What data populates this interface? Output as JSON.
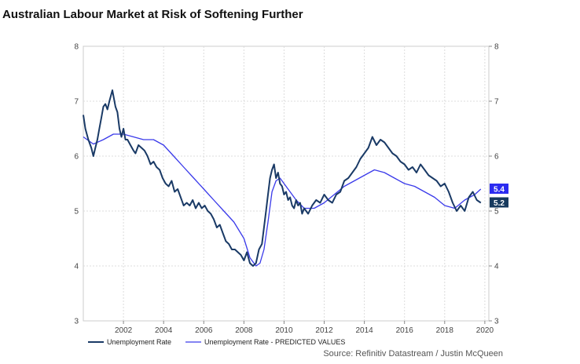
{
  "page": {
    "title": "Australian Labour Market at Risk of Softening Further",
    "source": "Source: Refinitiv Datastream / Justin McQueen"
  },
  "colors": {
    "actual": "#1a3a66",
    "predicted": "#3a3aea",
    "actual_label_bg": "#173a5e",
    "predicted_label_bg": "#2b2bf0"
  },
  "chart_data": {
    "type": "line",
    "title": "Australian Labour Market at Risk of Softening Further",
    "xlabel": "",
    "ylabel": "",
    "xlim": [
      2000.0,
      2020.2
    ],
    "ylim": [
      3,
      8
    ],
    "x_ticks": [
      2002,
      2004,
      2006,
      2008,
      2010,
      2012,
      2014,
      2016,
      2018,
      2020
    ],
    "y_ticks": [
      3,
      4,
      5,
      6,
      7,
      8
    ],
    "grid": true,
    "legend": "bottom-left",
    "series": [
      {
        "name": "Unemployment Rate",
        "x": [
          2000.0,
          2000.1,
          2000.25,
          2000.4,
          2000.5,
          2000.6,
          2000.7,
          2000.8,
          2000.9,
          2001.0,
          2001.1,
          2001.2,
          2001.3,
          2001.45,
          2001.6,
          2001.7,
          2001.8,
          2001.9,
          2002.0,
          2002.1,
          2002.2,
          2002.35,
          2002.5,
          2002.6,
          2002.75,
          2002.9,
          2003.05,
          2003.2,
          2003.35,
          2003.5,
          2003.65,
          2003.8,
          2003.95,
          2004.1,
          2004.25,
          2004.4,
          2004.55,
          2004.7,
          2004.85,
          2005.0,
          2005.15,
          2005.3,
          2005.45,
          2005.6,
          2005.75,
          2005.9,
          2006.05,
          2006.2,
          2006.35,
          2006.5,
          2006.65,
          2006.8,
          2006.95,
          2007.1,
          2007.25,
          2007.4,
          2007.55,
          2007.7,
          2007.85,
          2008.0,
          2008.15,
          2008.3,
          2008.45,
          2008.6,
          2008.75,
          2008.9,
          2009.0,
          2009.1,
          2009.2,
          2009.3,
          2009.4,
          2009.5,
          2009.6,
          2009.7,
          2009.8,
          2009.9,
          2010.0,
          2010.1,
          2010.2,
          2010.3,
          2010.4,
          2010.5,
          2010.6,
          2010.7,
          2010.8,
          2010.9,
          2011.0,
          2011.2,
          2011.4,
          2011.6,
          2011.8,
          2012.0,
          2012.2,
          2012.4,
          2012.6,
          2012.8,
          2013.0,
          2013.2,
          2013.4,
          2013.6,
          2013.8,
          2014.0,
          2014.2,
          2014.4,
          2014.6,
          2014.8,
          2015.0,
          2015.2,
          2015.4,
          2015.6,
          2015.8,
          2016.0,
          2016.2,
          2016.4,
          2016.6,
          2016.8,
          2017.0,
          2017.2,
          2017.4,
          2017.6,
          2017.8,
          2018.0,
          2018.2,
          2018.4,
          2018.6,
          2018.8,
          2019.0,
          2019.2,
          2019.4,
          2019.6,
          2019.8
        ],
        "y": [
          6.75,
          6.5,
          6.3,
          6.15,
          6.0,
          6.15,
          6.3,
          6.5,
          6.7,
          6.9,
          6.95,
          6.85,
          7.0,
          7.2,
          6.9,
          6.8,
          6.5,
          6.35,
          6.5,
          6.3,
          6.3,
          6.2,
          6.1,
          6.05,
          6.2,
          6.15,
          6.1,
          6.0,
          5.85,
          5.9,
          5.8,
          5.75,
          5.6,
          5.5,
          5.45,
          5.55,
          5.35,
          5.4,
          5.25,
          5.1,
          5.15,
          5.1,
          5.2,
          5.05,
          5.15,
          5.05,
          5.1,
          5.0,
          4.95,
          4.85,
          4.7,
          4.75,
          4.6,
          4.45,
          4.4,
          4.3,
          4.3,
          4.25,
          4.2,
          4.1,
          4.25,
          4.05,
          4.0,
          4.05,
          4.3,
          4.4,
          4.7,
          5.0,
          5.3,
          5.6,
          5.75,
          5.85,
          5.6,
          5.7,
          5.5,
          5.45,
          5.3,
          5.35,
          5.2,
          5.25,
          5.1,
          5.05,
          5.2,
          5.1,
          5.15,
          4.95,
          5.05,
          4.95,
          5.1,
          5.2,
          5.15,
          5.3,
          5.2,
          5.15,
          5.3,
          5.35,
          5.55,
          5.6,
          5.7,
          5.8,
          5.95,
          6.05,
          6.15,
          6.35,
          6.2,
          6.3,
          6.25,
          6.15,
          6.05,
          6.0,
          5.9,
          5.85,
          5.75,
          5.8,
          5.7,
          5.85,
          5.75,
          5.65,
          5.6,
          5.55,
          5.45,
          5.5,
          5.35,
          5.15,
          5.0,
          5.1,
          5.0,
          5.25,
          5.35,
          5.2,
          5.15
        ]
      },
      {
        "name": "Unemployment Rate - PREDICTED VALUES",
        "x": [
          2000.0,
          2000.5,
          2001.0,
          2001.5,
          2002.0,
          2002.5,
          2003.0,
          2003.5,
          2004.0,
          2004.5,
          2005.0,
          2005.5,
          2006.0,
          2006.5,
          2007.0,
          2007.5,
          2008.0,
          2008.3,
          2008.6,
          2008.8,
          2009.0,
          2009.2,
          2009.4,
          2009.6,
          2009.8,
          2010.0,
          2010.3,
          2010.6,
          2011.0,
          2011.5,
          2012.0,
          2012.5,
          2013.0,
          2013.5,
          2014.0,
          2014.5,
          2015.0,
          2015.5,
          2016.0,
          2016.5,
          2017.0,
          2017.5,
          2018.0,
          2018.5,
          2019.0,
          2019.5,
          2019.8
        ],
        "y": [
          6.35,
          6.22,
          6.3,
          6.4,
          6.4,
          6.35,
          6.3,
          6.3,
          6.2,
          6.0,
          5.8,
          5.6,
          5.4,
          5.2,
          5.0,
          4.8,
          4.5,
          4.15,
          4.0,
          4.05,
          4.3,
          4.8,
          5.35,
          5.55,
          5.6,
          5.5,
          5.35,
          5.2,
          5.05,
          5.05,
          5.15,
          5.3,
          5.45,
          5.55,
          5.65,
          5.75,
          5.7,
          5.6,
          5.5,
          5.45,
          5.35,
          5.25,
          5.1,
          5.05,
          5.2,
          5.3,
          5.4
        ]
      }
    ],
    "end_labels": {
      "actual": "5.2",
      "predicted": "5.4"
    }
  }
}
